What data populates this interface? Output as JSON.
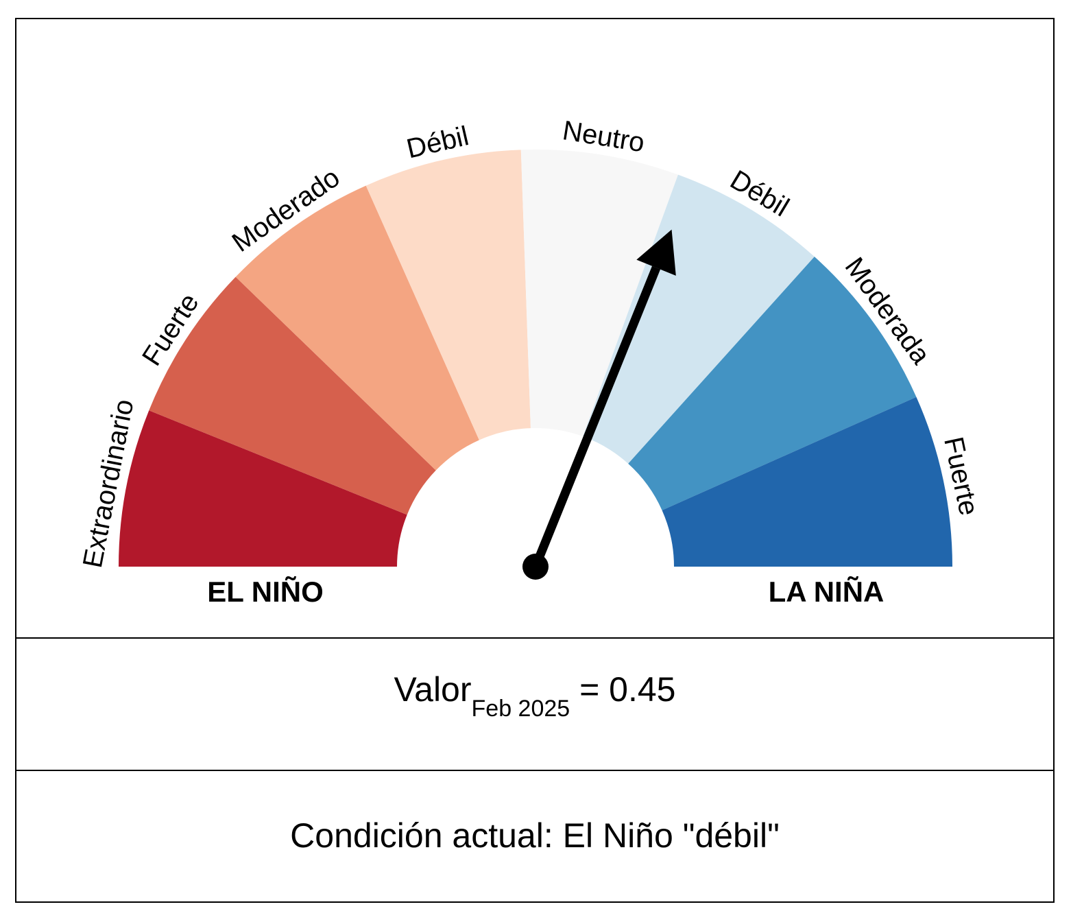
{
  "chart_data": {
    "type": "gauge",
    "segments": [
      {
        "label": "Extraordinario",
        "color": "#b2182b"
      },
      {
        "label": "Fuerte",
        "color": "#d6604d"
      },
      {
        "label": "Moderado",
        "color": "#f4a582"
      },
      {
        "label": "Débil",
        "color": "#fddbc7"
      },
      {
        "label": "Neutro",
        "color": "#f7f7f7"
      },
      {
        "label": "Débil",
        "color": "#d1e5f0"
      },
      {
        "label": "Moderada",
        "color": "#4393c3"
      },
      {
        "label": "Fuerte",
        "color": "#2166ac"
      }
    ],
    "segment_spans_deg": [
      22,
      22,
      22,
      22,
      22,
      22,
      24,
      24
    ],
    "pointer_angle_deg": 68,
    "side_labels": {
      "left": "EL NIÑO",
      "right": "LA NIÑA"
    }
  },
  "value": {
    "prefix": "Valor",
    "subscript": "Feb 2025",
    "suffix": " = 0.45"
  },
  "condition": "Condición actual: El Niño \"débil\""
}
